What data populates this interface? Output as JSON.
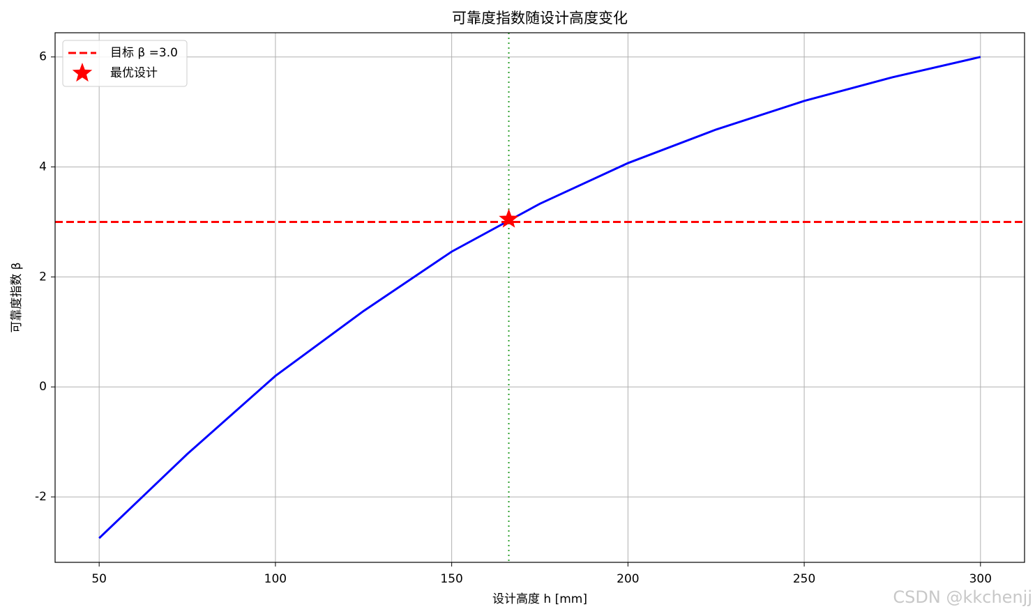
{
  "chart_data": {
    "type": "line",
    "title": "可靠度指数随设计高度变化",
    "x_label": "设计高度 h [mm]",
    "y_label": "可靠度指数 β",
    "x": [
      50,
      75,
      100,
      125,
      150,
      175,
      200,
      225,
      250,
      275,
      300
    ],
    "series": [
      {
        "color": "#0000ff",
        "values": [
          -2.75,
          -1.22,
          0.2,
          1.38,
          2.46,
          3.33,
          4.07,
          4.68,
          5.2,
          5.63,
          6.0
        ]
      }
    ],
    "hlines": [
      {
        "name": "目标 β =3.0",
        "value": 3.0,
        "color": "#ff0000"
      }
    ],
    "vlines": [
      {
        "value": 166.2,
        "color": "#2ca02c"
      }
    ],
    "points": [
      {
        "name": "最优设计",
        "x": 166.2,
        "y": 3.05,
        "color": "#ff0000"
      }
    ],
    "xlim": [
      37.5,
      312.5
    ],
    "ylim": [
      -3.19,
      6.44
    ],
    "xticks": [
      50,
      100,
      150,
      200,
      250,
      300
    ],
    "yticks": [
      -2,
      0,
      2,
      4,
      6
    ],
    "grid": true,
    "legend": "upper left",
    "watermark": "CSDN @kkchenjj"
  }
}
